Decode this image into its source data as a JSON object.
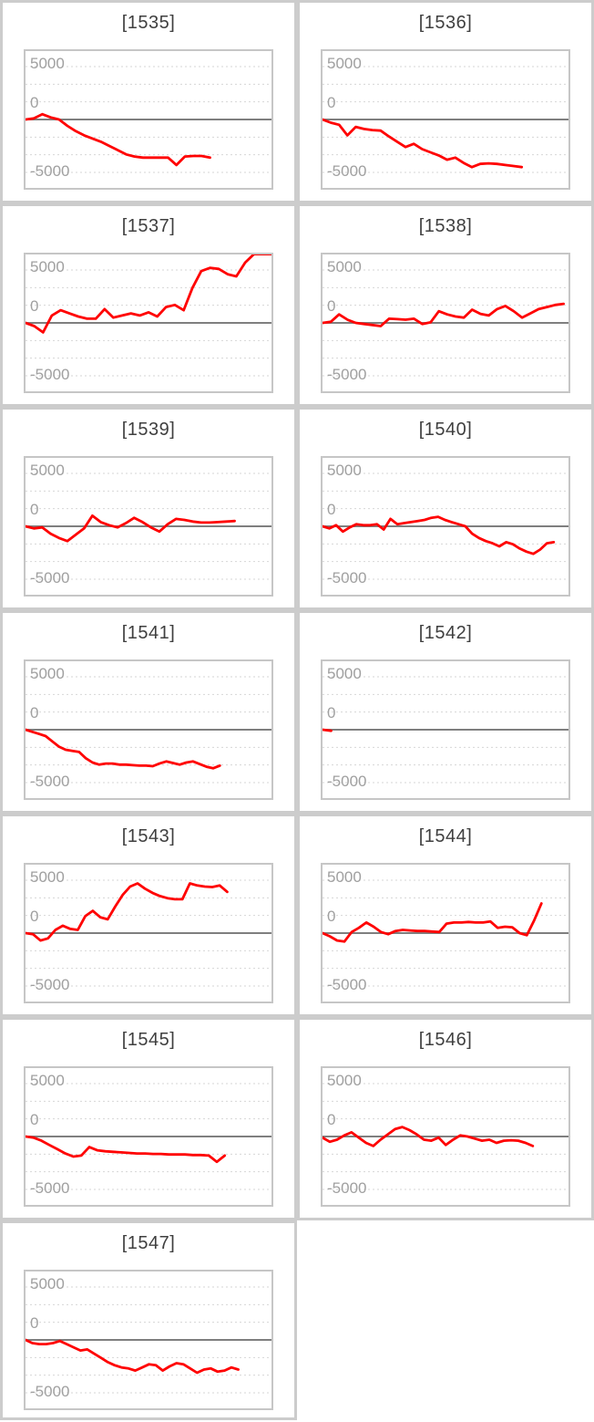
{
  "style": {
    "series_color": "#ff0000",
    "grid_color": "#d6d6d6",
    "zero_line_color": "#7f7f7f",
    "cell_border_color": "#cccccc",
    "plot_border_color": "#c6c6c6",
    "title_color": "#3f3f3f",
    "tick_label_color": "#a0a0a0",
    "background": "#ffffff"
  },
  "axis": {
    "tick_labels": [
      "5000",
      "0",
      "-5000"
    ],
    "ylim": [
      -6600,
      6600
    ],
    "gridline_values": [
      5000,
      3333,
      1667,
      0,
      -1667,
      -3333,
      -5000
    ],
    "zero_line": 0,
    "grid_style": "dotted"
  },
  "chart_data": [
    {
      "type": "line",
      "title": "[1535]",
      "end_fraction": 0.75,
      "values": [
        0,
        100,
        500,
        200,
        0,
        -600,
        -1100,
        -1500,
        -1800,
        -2100,
        -2500,
        -2900,
        -3300,
        -3500,
        -3600,
        -3600,
        -3600,
        -3600,
        -4300,
        -3500,
        -3450,
        -3450,
        -3600
      ]
    },
    {
      "type": "line",
      "title": "[1536]",
      "end_fraction": 0.81,
      "values": [
        0,
        -300,
        -500,
        -1500,
        -700,
        -900,
        -1000,
        -1050,
        -1600,
        -2100,
        -2600,
        -2300,
        -2800,
        -3100,
        -3400,
        -3800,
        -3600,
        -4100,
        -4500,
        -4200,
        -4150,
        -4200,
        -4300,
        -4400,
        -4500
      ]
    },
    {
      "type": "line",
      "title": "[1537]",
      "end_fraction": 1.0,
      "values": [
        0,
        -300,
        -900,
        700,
        1200,
        900,
        600,
        400,
        400,
        1300,
        500,
        700,
        900,
        700,
        1000,
        600,
        1500,
        1700,
        1200,
        3300,
        4900,
        5200,
        5100,
        4600,
        4400,
        5700,
        6500,
        6500,
        6500
      ]
    },
    {
      "type": "line",
      "title": "[1538]",
      "end_fraction": 0.98,
      "values": [
        0,
        100,
        800,
        300,
        0,
        -100,
        -200,
        -300,
        400,
        350,
        300,
        400,
        -100,
        50,
        1100,
        800,
        600,
        500,
        1250,
        850,
        700,
        1300,
        1600,
        1100,
        500,
        900,
        1300,
        1500,
        1700,
        1800
      ]
    },
    {
      "type": "line",
      "title": "[1539]",
      "end_fraction": 0.85,
      "values": [
        0,
        -200,
        -100,
        -700,
        -1100,
        -1400,
        -800,
        -200,
        1000,
        400,
        100,
        -100,
        300,
        800,
        400,
        -100,
        -500,
        200,
        700,
        600,
        450,
        350,
        350,
        400,
        450,
        500
      ]
    },
    {
      "type": "line",
      "title": "[1540]",
      "end_fraction": 0.94,
      "values": [
        0,
        -200,
        100,
        -500,
        -100,
        200,
        100,
        100,
        200,
        -300,
        700,
        200,
        300,
        400,
        500,
        600,
        800,
        900,
        600,
        400,
        200,
        0,
        -700,
        -1100,
        -1400,
        -1600,
        -1900,
        -1500,
        -1700,
        -2100,
        -2400,
        -2600,
        -2200,
        -1600,
        -1500
      ]
    },
    {
      "type": "line",
      "title": "[1541]",
      "end_fraction": 0.79,
      "values": [
        0,
        -200,
        -400,
        -600,
        -1100,
        -1600,
        -1900,
        -2000,
        -2100,
        -2700,
        -3100,
        -3300,
        -3200,
        -3200,
        -3300,
        -3300,
        -3350,
        -3400,
        -3400,
        -3450,
        -3200,
        -3000,
        -3150,
        -3300,
        -3100,
        -3000,
        -3250,
        -3500,
        -3650,
        -3400
      ]
    },
    {
      "type": "line",
      "title": "[1542]",
      "end_fraction": 0.035,
      "values": [
        0,
        -100
      ]
    },
    {
      "type": "line",
      "title": "[1543]",
      "end_fraction": 0.82,
      "values": [
        0,
        -100,
        -700,
        -500,
        300,
        700,
        400,
        300,
        1600,
        2100,
        1500,
        1300,
        2500,
        3600,
        4400,
        4700,
        4200,
        3800,
        3500,
        3300,
        3200,
        3200,
        4700,
        4500,
        4400,
        4350,
        4500,
        3900
      ]
    },
    {
      "type": "line",
      "title": "[1544]",
      "end_fraction": 0.89,
      "values": [
        0,
        -300,
        -700,
        -800,
        100,
        500,
        1000,
        600,
        100,
        -100,
        200,
        300,
        250,
        200,
        200,
        150,
        100,
        900,
        1000,
        1000,
        1050,
        1000,
        1000,
        1100,
        500,
        600,
        550,
        0,
        -200,
        1200,
        2800
      ]
    },
    {
      "type": "line",
      "title": "[1545]",
      "end_fraction": 0.81,
      "values": [
        0,
        -100,
        -400,
        -800,
        -1200,
        -1600,
        -1900,
        -1800,
        -1000,
        -1300,
        -1400,
        -1450,
        -1500,
        -1550,
        -1600,
        -1600,
        -1650,
        -1650,
        -1700,
        -1700,
        -1700,
        -1750,
        -1750,
        -1800,
        -2400,
        -1800
      ]
    },
    {
      "type": "line",
      "title": "[1546]",
      "end_fraction": 0.855,
      "values": [
        -100,
        -500,
        -300,
        100,
        400,
        -100,
        -600,
        -900,
        -300,
        200,
        700,
        900,
        600,
        200,
        -300,
        -400,
        -100,
        -800,
        -300,
        100,
        0,
        -200,
        -400,
        -300,
        -600,
        -400,
        -350,
        -400,
        -600,
        -900
      ]
    },
    {
      "type": "line",
      "title": "[1547]",
      "end_fraction": 0.865,
      "values": [
        0,
        -300,
        -400,
        -400,
        -300,
        -100,
        -400,
        -700,
        -1000,
        -900,
        -1300,
        -1700,
        -2100,
        -2400,
        -2600,
        -2700,
        -2900,
        -2600,
        -2300,
        -2400,
        -2900,
        -2500,
        -2200,
        -2300,
        -2700,
        -3100,
        -2800,
        -2700,
        -3000,
        -2900,
        -2600,
        -2800
      ]
    }
  ]
}
